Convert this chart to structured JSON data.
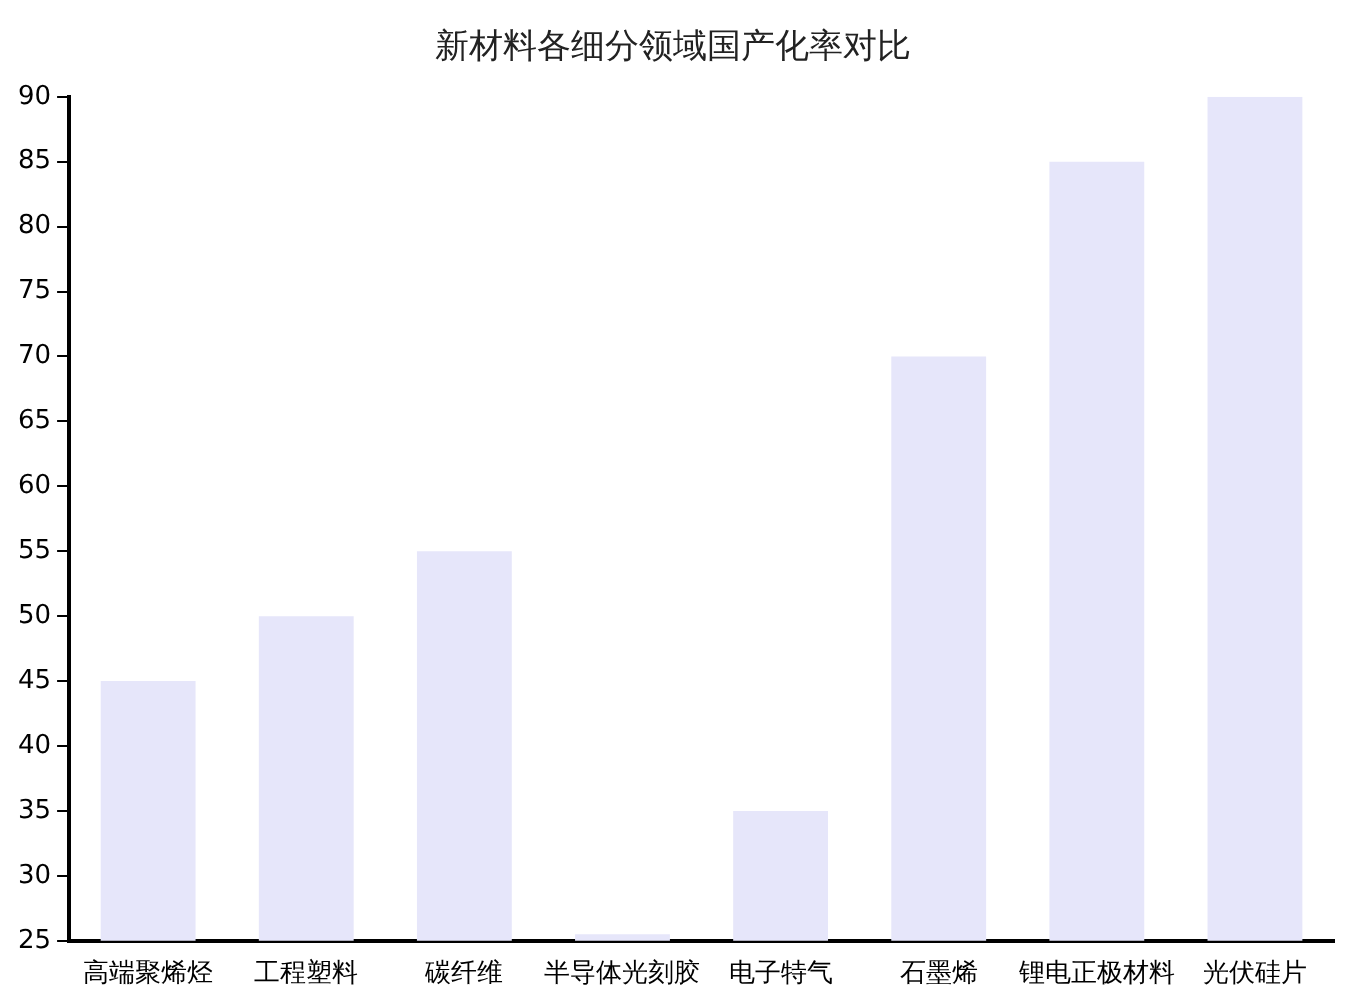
{
  "chart_data": {
    "type": "bar",
    "title": "新材料各细分领域国产化率对比",
    "categories": [
      "高端聚烯烃",
      "工程塑料",
      "碳纤维",
      "半导体光刻胶",
      "电子特气",
      "石墨烯",
      "锂电正极材料",
      "光伏硅片"
    ],
    "values": [
      45,
      50,
      55,
      25.5,
      35,
      70,
      85,
      90
    ],
    "color": "#e6e6fa",
    "ylim": [
      25,
      90
    ],
    "yticks": [
      25,
      30,
      35,
      40,
      45,
      50,
      55,
      60,
      65,
      70,
      75,
      80,
      85,
      90
    ],
    "grid": false
  }
}
